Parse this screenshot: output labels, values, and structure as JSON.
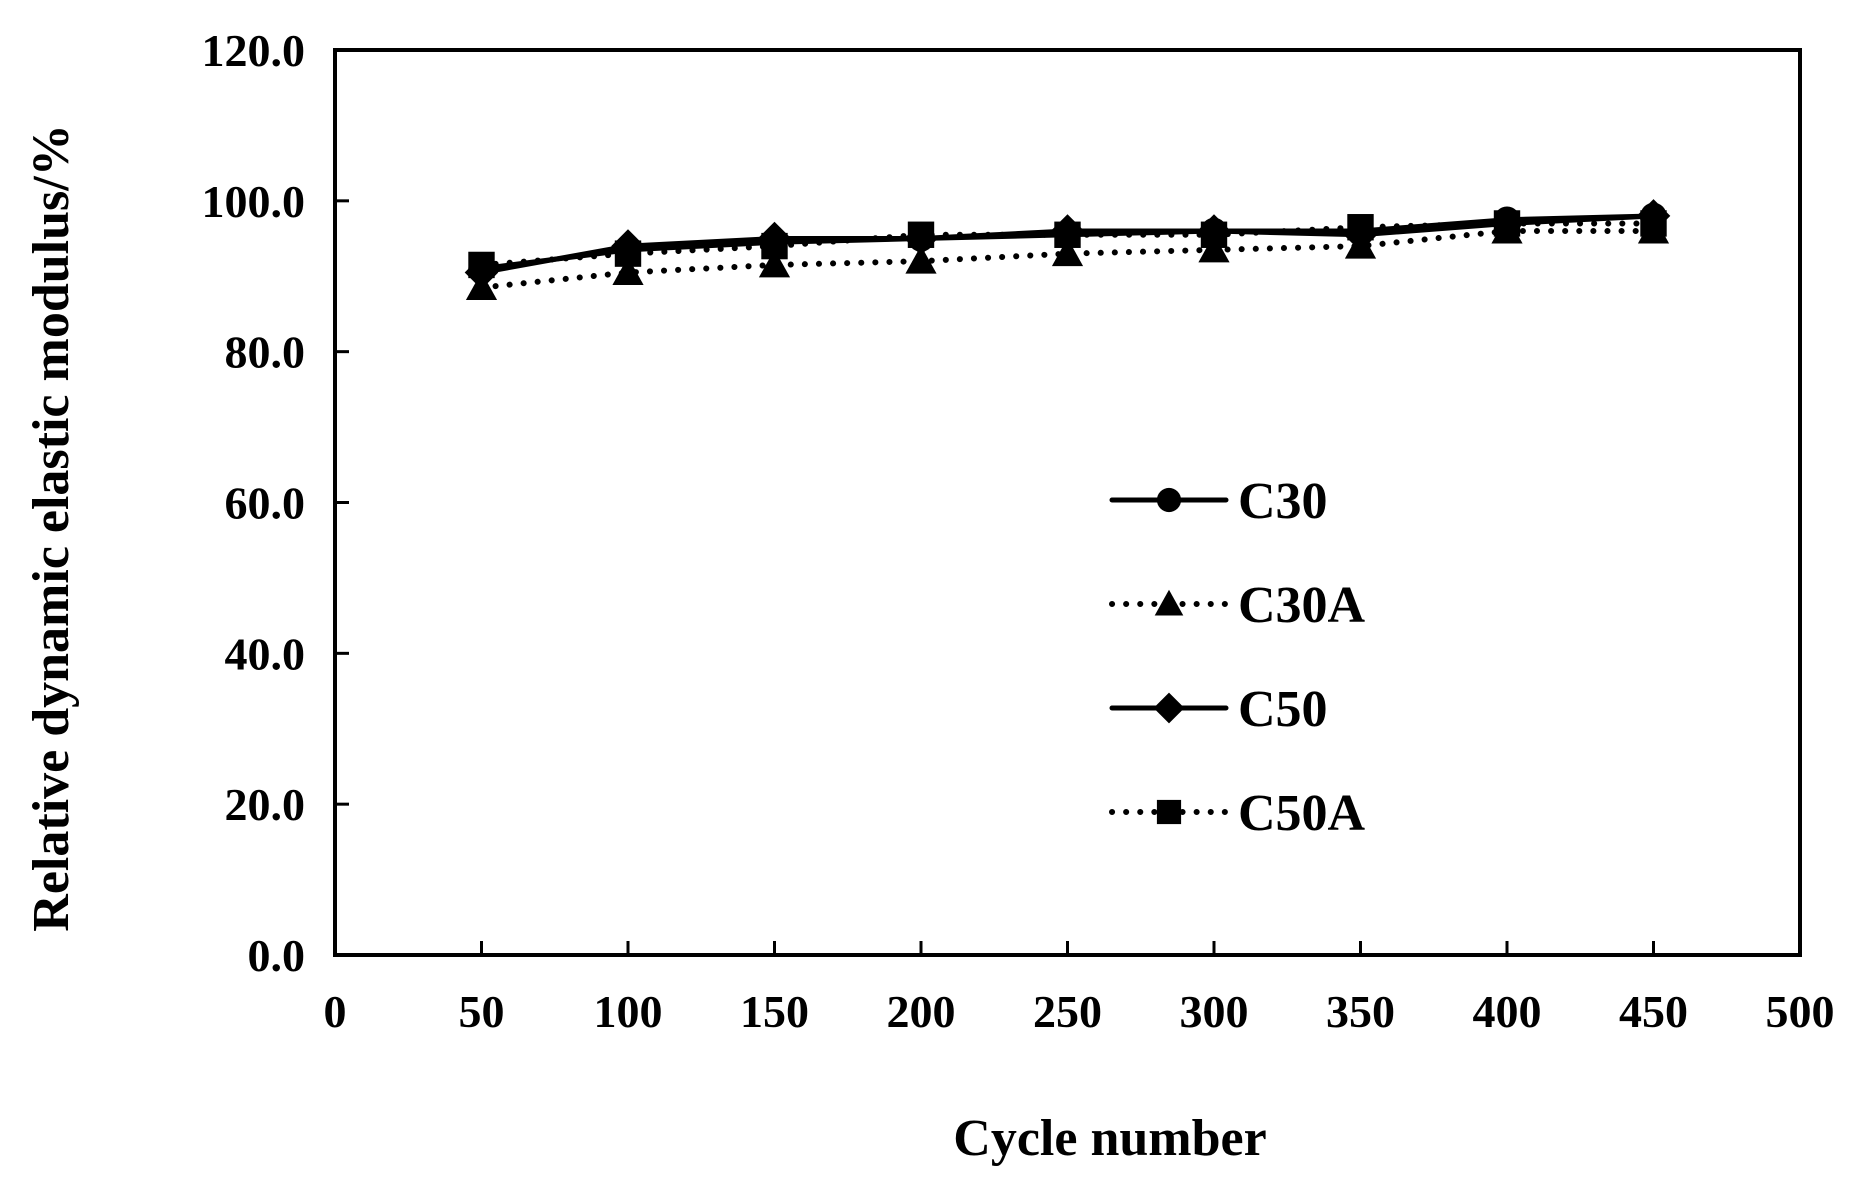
{
  "chart_data": {
    "type": "line",
    "title": "",
    "xlabel": "Cycle number",
    "ylabel": "Relative dynamic elastic modulus/%",
    "xlim": [
      0,
      500
    ],
    "ylim": [
      0,
      120
    ],
    "x_ticks": [
      0,
      50,
      100,
      150,
      200,
      250,
      300,
      350,
      400,
      450,
      500
    ],
    "x_tick_labels": [
      "0",
      "50",
      "100",
      "150",
      "200",
      "250",
      "300",
      "350",
      "400",
      "450",
      "500"
    ],
    "y_ticks": [
      0,
      20,
      40,
      60,
      80,
      100,
      120
    ],
    "y_tick_labels": [
      "0.0",
      "20.0",
      "40.0",
      "60.0",
      "80.0",
      "100.0",
      "120.0"
    ],
    "grid": false,
    "legend_position": "right-center",
    "x": [
      50,
      100,
      150,
      200,
      250,
      300,
      350,
      400,
      450
    ],
    "series": [
      {
        "name": "C30",
        "values": [
          91.0,
          93.5,
          94.5,
          95.0,
          95.5,
          96.0,
          96.0,
          97.5,
          98.0
        ],
        "line": "solid",
        "marker": "circle",
        "color": "#000000"
      },
      {
        "name": "C30A",
        "values": [
          88.5,
          90.5,
          91.5,
          92.0,
          93.0,
          93.5,
          94.0,
          96.0,
          96.0
        ],
        "line": "dotted",
        "marker": "triangle",
        "color": "#000000"
      },
      {
        "name": "C50",
        "values": [
          90.5,
          94.0,
          95.0,
          95.0,
          96.0,
          96.0,
          95.5,
          97.0,
          98.0
        ],
        "line": "solid",
        "marker": "diamond",
        "color": "#000000"
      },
      {
        "name": "C50A",
        "values": [
          91.5,
          93.0,
          94.0,
          95.5,
          95.5,
          95.5,
          96.5,
          97.0,
          97.0
        ],
        "line": "dotted",
        "marker": "square",
        "color": "#000000"
      }
    ]
  }
}
